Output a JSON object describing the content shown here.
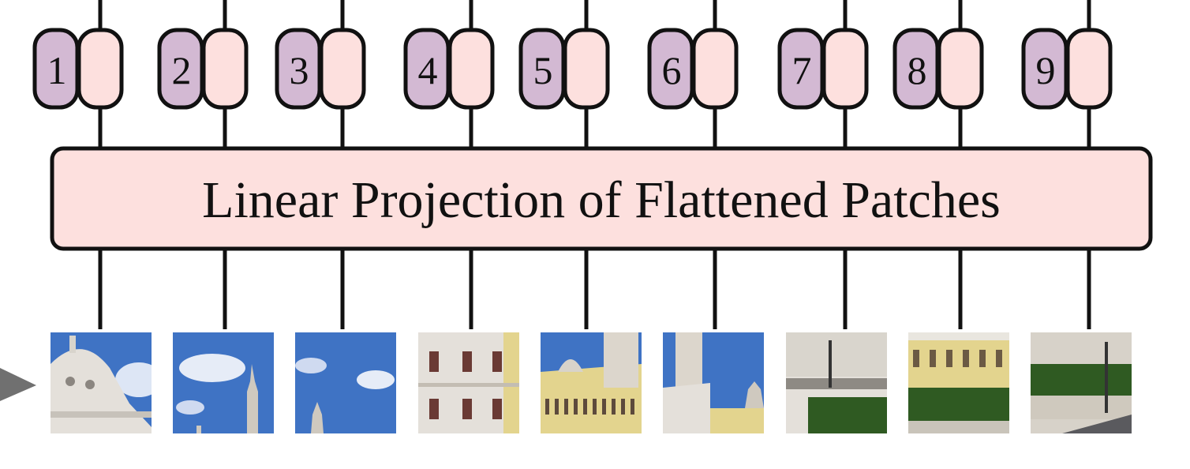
{
  "projection": {
    "label": "Linear Projection of Flattened Patches"
  },
  "tokens": [
    {
      "index": "1"
    },
    {
      "index": "2"
    },
    {
      "index": "3"
    },
    {
      "index": "4"
    },
    {
      "index": "5"
    },
    {
      "index": "6"
    },
    {
      "index": "7"
    },
    {
      "index": "8"
    },
    {
      "index": "9"
    }
  ],
  "patches": [
    {
      "icon": "dome-sky-patch-icon"
    },
    {
      "icon": "cloud-spire-patch-icon"
    },
    {
      "icon": "sky-spire-patch-icon"
    },
    {
      "icon": "facade-windows-patch-icon"
    },
    {
      "icon": "palace-towers-patch-icon"
    },
    {
      "icon": "tower-sky-patch-icon"
    },
    {
      "icon": "street-garden-patch-icon"
    },
    {
      "icon": "yellow-building-garden-patch-icon"
    },
    {
      "icon": "hedges-road-patch-icon"
    }
  ],
  "colors": {
    "position_embedding": "#d3b9d3",
    "patch_embedding": "#fde0de",
    "projection_box": "#fde0de",
    "stroke": "#111111",
    "sky": "#3f73c4",
    "building": "#e4e0da",
    "yellow_facade": "#e3d48e",
    "grass": "#2f5a22",
    "arrow": "#707070"
  }
}
